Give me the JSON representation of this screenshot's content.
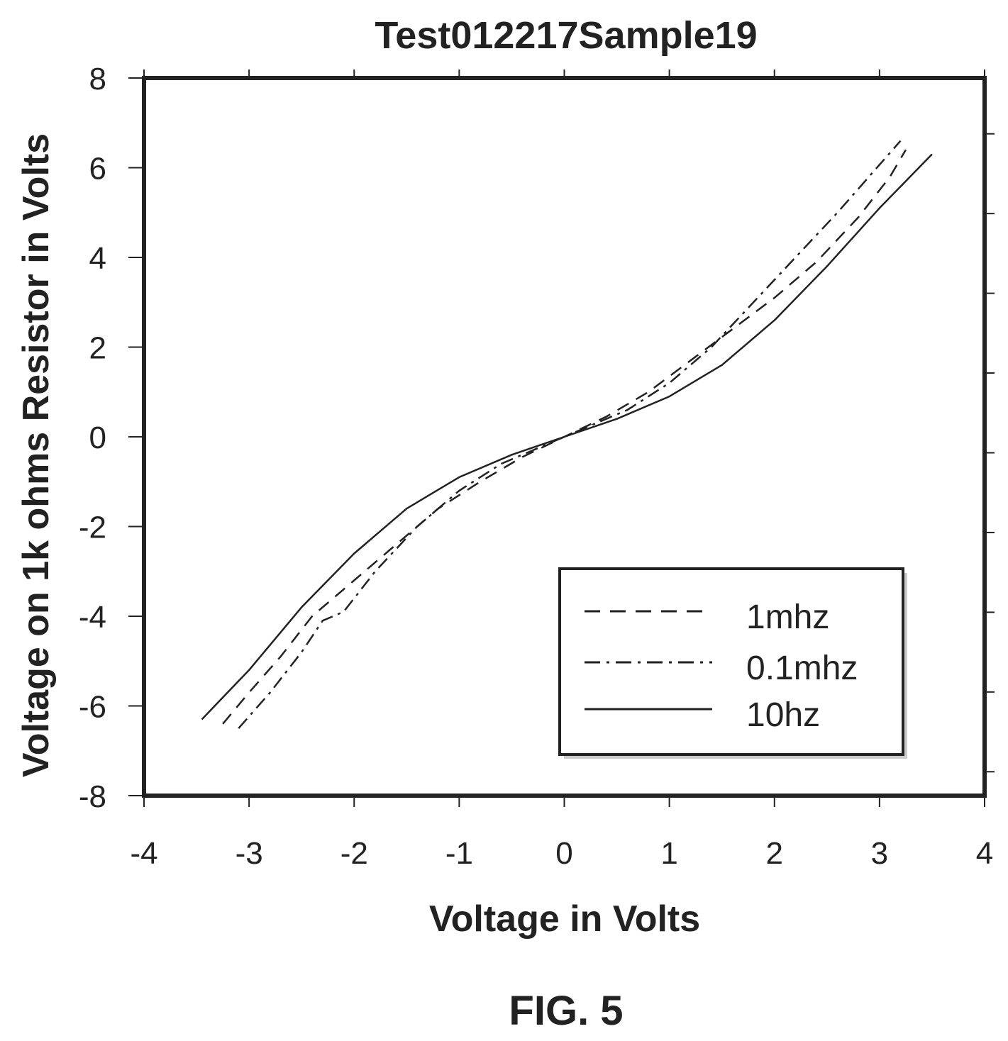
{
  "chart_data": {
    "type": "line",
    "title": "Test012217Sample19",
    "xlabel": "Voltage in Volts",
    "ylabel": "Voltage on 1k ohms Resistor in Volts",
    "xlim": [
      -4,
      4
    ],
    "ylim": [
      -8,
      8
    ],
    "x_ticks": [
      -4,
      -3,
      -2,
      -1,
      0,
      1,
      2,
      3,
      4
    ],
    "y_ticks": [
      8,
      6,
      4,
      2,
      0,
      -2,
      -4,
      -6,
      -8
    ],
    "x_tick_labels": [
      "-4",
      "-3",
      "-2",
      "-1",
      "0",
      "1",
      "2",
      "3",
      "4"
    ],
    "y_tick_labels": [
      "8",
      "6",
      "4",
      "2",
      "0",
      "-2",
      "-4",
      "-6",
      "-8"
    ],
    "grid": false,
    "legend_position": "bottom-right",
    "series": [
      {
        "name": "1mhz",
        "style": "dashed",
        "x": [
          -3.25,
          -3.0,
          -2.7,
          -2.4,
          -2.0,
          -1.6,
          -1.2,
          -0.8,
          -0.4,
          0.0,
          0.4,
          0.8,
          1.2,
          1.6,
          2.0,
          2.4,
          2.8,
          3.1,
          3.25
        ],
        "y": [
          -6.4,
          -5.7,
          -4.9,
          -4.0,
          -3.2,
          -2.4,
          -1.6,
          -1.0,
          -0.45,
          0.0,
          0.45,
          1.0,
          1.7,
          2.4,
          3.1,
          3.9,
          4.9,
          5.8,
          6.4
        ],
        "color": "#222222"
      },
      {
        "name": "0.1mhz",
        "style": "dashdot",
        "x": [
          -3.1,
          -2.8,
          -2.5,
          -2.3,
          -2.1,
          -1.8,
          -1.4,
          -1.0,
          -0.6,
          -0.3,
          0.0,
          0.3,
          0.6,
          1.0,
          1.4,
          1.8,
          2.2,
          2.6,
          2.9,
          3.2
        ],
        "y": [
          -6.5,
          -5.7,
          -4.8,
          -4.1,
          -3.9,
          -3.0,
          -2.0,
          -1.2,
          -0.6,
          -0.3,
          0.0,
          0.3,
          0.6,
          1.2,
          2.0,
          3.0,
          4.0,
          5.0,
          5.8,
          6.6
        ],
        "color": "#222222"
      },
      {
        "name": "10hz",
        "style": "solid",
        "x": [
          -3.45,
          -3.0,
          -2.5,
          -2.0,
          -1.5,
          -1.0,
          -0.5,
          0.0,
          0.5,
          1.0,
          1.5,
          2.0,
          2.5,
          3.0,
          3.5
        ],
        "y": [
          -6.3,
          -5.2,
          -3.8,
          -2.6,
          -1.6,
          -0.9,
          -0.4,
          0.0,
          0.4,
          0.9,
          1.6,
          2.6,
          3.8,
          5.1,
          6.3
        ],
        "color": "#222222"
      }
    ]
  },
  "caption": "FIG. 5"
}
